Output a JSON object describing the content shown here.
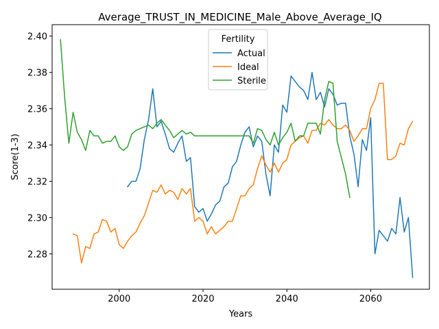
{
  "chart_data": {
    "type": "line",
    "title": "Average_TRUST_IN_MEDICINE_Male_Above_Average_IQ",
    "xlabel": "Years",
    "ylabel": "Score(1-3)",
    "xlim": [
      1984,
      2074
    ],
    "ylim": [
      2.2605,
      2.4063
    ],
    "x_ticks": [
      2000,
      2020,
      2040,
      2060
    ],
    "y_ticks": [
      2.28,
      2.3,
      2.32,
      2.34,
      2.36,
      2.38,
      2.4
    ],
    "y_tick_labels": [
      "2.28",
      "2.30",
      "2.32",
      "2.34",
      "2.36",
      "2.38",
      "2.40"
    ],
    "grid": false,
    "legend": {
      "title": "Fertility",
      "placement": "top-center"
    },
    "series": [
      {
        "name": "Actual",
        "color": "#1f77b4",
        "x": [
          2002,
          2003,
          2004,
          2005,
          2006,
          2007,
          2008,
          2009,
          2010,
          2011,
          2012,
          2013,
          2014,
          2015,
          2016,
          2017,
          2018,
          2019,
          2020,
          2021,
          2022,
          2023,
          2024,
          2025,
          2026,
          2027,
          2028,
          2029,
          2030,
          2031,
          2032,
          2033,
          2034,
          2035,
          2036,
          2037,
          2038,
          2039,
          2040,
          2041,
          2042,
          2043,
          2044,
          2045,
          2046,
          2047,
          2048,
          2049,
          2050,
          2051,
          2052,
          2053,
          2054,
          2055,
          2056,
          2057,
          2058,
          2059,
          2060,
          2061,
          2062,
          2063,
          2064,
          2065,
          2066,
          2067,
          2068,
          2069,
          2070
        ],
        "values": [
          2.317,
          2.32,
          2.32,
          2.327,
          2.343,
          2.354,
          2.371,
          2.35,
          2.353,
          2.346,
          2.338,
          2.336,
          2.341,
          2.345,
          2.331,
          2.333,
          2.306,
          2.303,
          2.305,
          2.298,
          2.302,
          2.307,
          2.309,
          2.317,
          2.319,
          2.328,
          2.331,
          2.34,
          2.347,
          2.35,
          2.339,
          2.345,
          2.342,
          2.324,
          2.312,
          2.34,
          2.336,
          2.362,
          2.358,
          2.378,
          2.375,
          2.372,
          2.37,
          2.365,
          2.38,
          2.365,
          2.369,
          2.361,
          2.371,
          2.368,
          2.362,
          2.363,
          2.363,
          2.345,
          2.335,
          2.317,
          2.343,
          2.337,
          2.355,
          2.28,
          2.293,
          2.29,
          2.287,
          2.294,
          2.291,
          2.311,
          2.292,
          2.3,
          2.267
        ]
      },
      {
        "name": "Ideal",
        "color": "#ff7f0e",
        "x": [
          1989,
          1990,
          1991,
          1992,
          1993,
          1994,
          1995,
          1996,
          1997,
          1998,
          1999,
          2000,
          2001,
          2002,
          2003,
          2004,
          2005,
          2006,
          2007,
          2008,
          2009,
          2010,
          2011,
          2012,
          2013,
          2014,
          2015,
          2016,
          2017,
          2018,
          2019,
          2020,
          2021,
          2022,
          2023,
          2024,
          2025,
          2026,
          2027,
          2028,
          2029,
          2030,
          2031,
          2032,
          2033,
          2034,
          2035,
          2036,
          2037,
          2038,
          2039,
          2040,
          2041,
          2042,
          2043,
          2044,
          2045,
          2046,
          2047,
          2048,
          2049,
          2050,
          2051,
          2052,
          2053,
          2054,
          2055,
          2056,
          2057,
          2058,
          2059,
          2060,
          2061,
          2062,
          2063,
          2064,
          2065,
          2066,
          2067,
          2068,
          2069,
          2070
        ],
        "values": [
          2.291,
          2.29,
          2.275,
          2.284,
          2.283,
          2.291,
          2.292,
          2.299,
          2.298,
          2.292,
          2.294,
          2.285,
          2.283,
          2.287,
          2.29,
          2.292,
          2.297,
          2.301,
          2.308,
          2.315,
          2.314,
          2.318,
          2.313,
          2.315,
          2.314,
          2.31,
          2.316,
          2.313,
          2.316,
          2.298,
          2.3,
          2.298,
          2.291,
          2.295,
          2.291,
          2.293,
          2.295,
          2.298,
          2.298,
          2.305,
          2.312,
          2.312,
          2.316,
          2.318,
          2.327,
          2.334,
          2.329,
          2.325,
          2.33,
          2.325,
          2.33,
          2.332,
          2.34,
          2.342,
          2.344,
          2.345,
          2.341,
          2.348,
          2.348,
          2.352,
          2.351,
          2.354,
          2.351,
          2.349,
          2.349,
          2.351,
          2.348,
          2.342,
          2.345,
          2.349,
          2.349,
          2.36,
          2.365,
          2.374,
          2.374,
          2.332,
          2.332,
          2.334,
          2.341,
          2.34,
          2.349,
          2.353
        ]
      },
      {
        "name": "Sterile",
        "color": "#2ca02c",
        "x": [
          1986,
          1987,
          1988,
          1989,
          1990,
          1991,
          1992,
          1993,
          1994,
          1995,
          1996,
          1997,
          1998,
          1999,
          2000,
          2001,
          2002,
          2003,
          2004,
          2005,
          2006,
          2007,
          2008,
          2009,
          2010,
          2011,
          2012,
          2013,
          2014,
          2015,
          2016,
          2017,
          2018,
          2019,
          2020,
          2021,
          2022,
          2023,
          2024,
          2025,
          2026,
          2027,
          2028,
          2029,
          2030,
          2031,
          2032,
          2033,
          2034,
          2035,
          2036,
          2037,
          2038,
          2039,
          2040,
          2041,
          2042,
          2043,
          2044,
          2045,
          2046,
          2047,
          2048,
          2049,
          2050,
          2051,
          2052,
          2053,
          2054,
          2055
        ],
        "values": [
          2.398,
          2.366,
          2.341,
          2.358,
          2.347,
          2.343,
          2.337,
          2.348,
          2.345,
          2.345,
          2.341,
          2.342,
          2.342,
          2.345,
          2.339,
          2.337,
          2.339,
          2.346,
          2.348,
          2.349,
          2.35,
          2.351,
          2.349,
          2.352,
          2.354,
          2.351,
          2.348,
          2.344,
          2.346,
          2.348,
          2.346,
          2.347,
          2.345,
          2.345,
          2.345,
          2.345,
          2.345,
          2.345,
          2.345,
          2.345,
          2.345,
          2.345,
          2.345,
          2.345,
          2.345,
          2.345,
          2.341,
          2.349,
          2.348,
          2.343,
          2.34,
          2.347,
          2.34,
          2.344,
          2.347,
          2.352,
          2.342,
          2.345,
          2.345,
          2.352,
          2.352,
          2.352,
          2.346,
          2.365,
          2.375,
          2.374,
          2.342,
          2.333,
          2.324,
          2.311
        ]
      }
    ]
  }
}
